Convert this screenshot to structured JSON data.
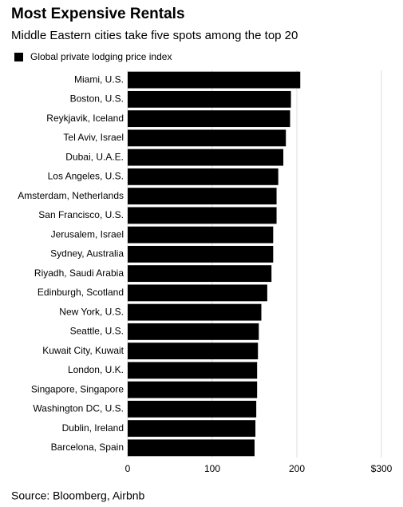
{
  "chart_data": {
    "type": "bar",
    "orientation": "horizontal",
    "title": "Most Expensive Rentals",
    "subtitle": "Middle Eastern cities take five spots among the top 20",
    "source": "Source: Bloomberg, Airbnb",
    "categories": [
      "Miami, U.S.",
      "Boston, U.S.",
      "Reykjavik, Iceland",
      "Tel Aviv, Israel",
      "Dubai, U.A.E.",
      "Los Angeles, U.S.",
      "Amsterdam, Netherlands",
      "San Francisco, U.S.",
      "Jerusalem, Israel",
      "Sydney, Australia",
      "Riyadh, Saudi Arabia",
      "Edinburgh, Scotland",
      "New York, U.S.",
      "Seattle, U.S.",
      "Kuwait City, Kuwait",
      "London, U.K.",
      "Singapore, Singapore",
      "Washington DC, U.S.",
      "Dublin, Ireland",
      "Barcelona, Spain"
    ],
    "series": [
      {
        "name": "Global private lodging price index",
        "color": "#000000",
        "values": [
          204,
          193,
          192,
          187,
          184,
          178,
          176,
          176,
          172,
          172,
          170,
          165,
          158,
          155,
          154,
          153,
          153,
          152,
          151,
          150
        ]
      }
    ],
    "xlim": [
      0,
      300
    ],
    "xticks": [
      0,
      100,
      200,
      {
        "value": 300,
        "label": "$300"
      }
    ],
    "grid": true
  }
}
